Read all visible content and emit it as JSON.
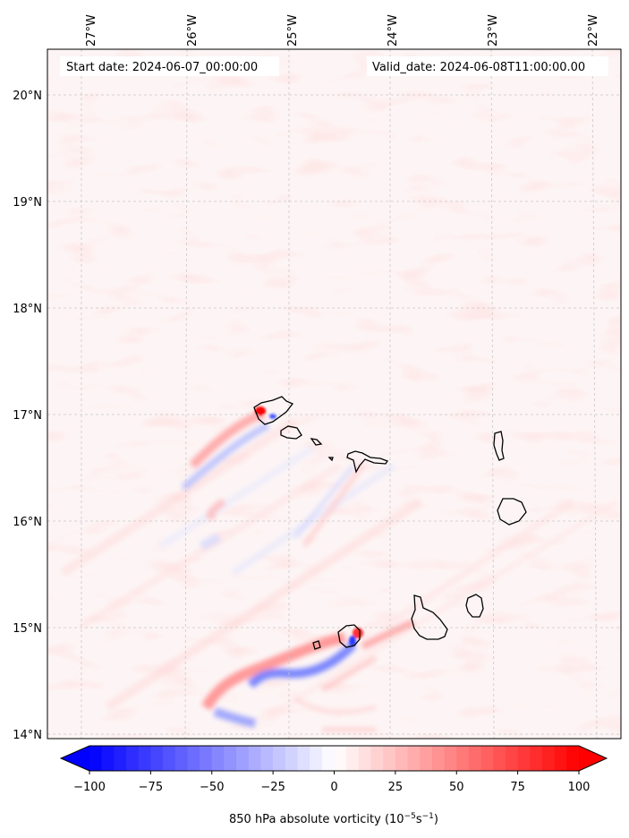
{
  "header": {
    "start_date": "Start date: 2024-06-07_00:00:00",
    "valid_date": "Valid_date: 2024-06-08T11:00:00.00"
  },
  "map": {
    "longitude_labels": [
      "27°W",
      "26°W",
      "25°W",
      "24°W",
      "23°W",
      "22°W"
    ],
    "latitude_labels": [
      "20°N",
      "19°N",
      "18°N",
      "17°N",
      "16°N",
      "15°N",
      "14°N"
    ],
    "gridlines": true,
    "coastline_color": "#000000"
  },
  "colorbar": {
    "tick_labels": [
      "−100",
      "−75",
      "−50",
      "−25",
      "0",
      "25",
      "50",
      "75",
      "100"
    ],
    "label_main": "850 hPa absolute vorticity (10",
    "label_exp1": "−5",
    "label_mid": "s",
    "label_exp2": "−1",
    "label_end": ")",
    "range": [
      -100,
      100
    ],
    "levels": 41,
    "colormap": "bwr",
    "extend": "both"
  },
  "chart_data": {
    "type": "heatmap",
    "field": "850 hPa absolute vorticity",
    "units": "1e-5 s^-1",
    "clim": [
      -100,
      100
    ],
    "colormap": "bwr",
    "lon_ticks": [
      -27,
      -26,
      -25,
      -24,
      -23,
      -22
    ],
    "lat_ticks": [
      20,
      19,
      18,
      17,
      16,
      15,
      14
    ],
    "lon_range": [
      -27.3,
      -21.9
    ],
    "lat_range": [
      13.95,
      20.4
    ],
    "grid": true
  },
  "colors": {
    "negative": "#0000ff",
    "neutral": "#ffffff",
    "positive": "#ff0000",
    "gridline": "#c8c8c8"
  }
}
